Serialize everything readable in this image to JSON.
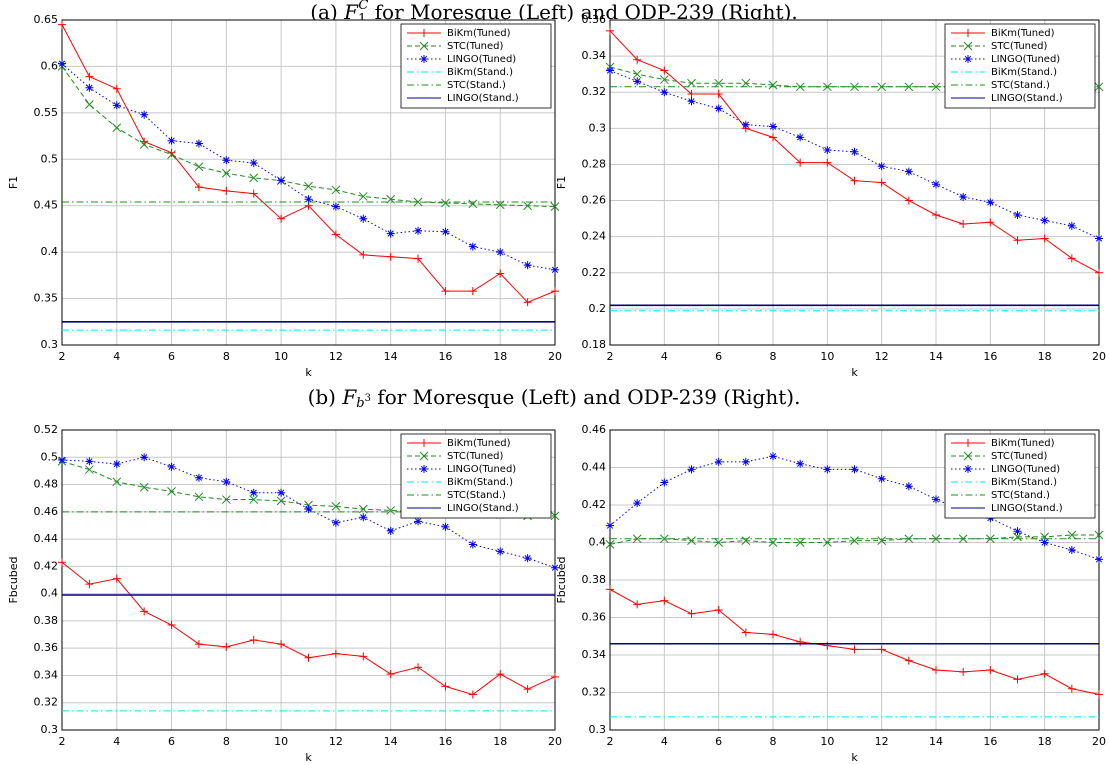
{
  "captions": [
    {
      "label": "(a)",
      "symbol": "F",
      "sub": "1",
      "sup": "C",
      "text": "for Moresque (Left) and ODP-239 (Right)."
    },
    {
      "label": "(b)",
      "symbol": "F",
      "sub": "b",
      "sup": "3",
      "text": "for Moresque (Left) and ODP-239 (Right)."
    }
  ],
  "chart_data": [
    {
      "type": "line",
      "xlabel": "k",
      "ylabel": "F1",
      "legend": "upper right",
      "grid": true,
      "x": [
        2,
        3,
        4,
        5,
        6,
        7,
        8,
        9,
        10,
        11,
        12,
        13,
        14,
        15,
        16,
        17,
        18,
        19,
        20
      ],
      "xlim": [
        2,
        20
      ],
      "xticks": [
        2,
        4,
        6,
        8,
        10,
        12,
        14,
        16,
        18,
        20
      ],
      "ylim": [
        0.3,
        0.65
      ],
      "yticks": [
        0.3,
        0.35,
        0.4,
        0.45,
        0.5,
        0.55,
        0.6,
        0.65
      ],
      "series": [
        {
          "name": "BiKm(Tuned)",
          "color": "#ff0000",
          "linestyle": "solid",
          "marker": "+",
          "values": [
            0.645,
            0.589,
            0.576,
            0.519,
            0.507,
            0.47,
            0.466,
            0.463,
            0.436,
            0.45,
            0.419,
            0.397,
            0.395,
            0.393,
            0.358,
            0.358,
            0.377,
            0.346,
            0.358
          ]
        },
        {
          "name": "STC(Tuned)",
          "color": "#228b22",
          "linestyle": "dashed",
          "marker": "x",
          "values": [
            0.6,
            0.559,
            0.534,
            0.516,
            0.505,
            0.492,
            0.485,
            0.48,
            0.477,
            0.471,
            0.467,
            0.46,
            0.457,
            0.454,
            0.453,
            0.452,
            0.451,
            0.45,
            0.449
          ]
        },
        {
          "name": "LINGO(Tuned)",
          "color": "#0000ff",
          "linestyle": "dotted",
          "marker": "*",
          "values": [
            0.603,
            0.577,
            0.558,
            0.548,
            0.52,
            0.517,
            0.499,
            0.496,
            0.477,
            0.457,
            0.449,
            0.436,
            0.42,
            0.423,
            0.422,
            0.406,
            0.4,
            0.386,
            0.381
          ]
        },
        {
          "name": "BiKm(Stand.)",
          "color": "#00e5ee",
          "linestyle": "dashdot",
          "values": [
            0.316,
            0.316,
            0.316,
            0.316,
            0.316,
            0.316,
            0.316,
            0.316,
            0.316,
            0.316,
            0.316,
            0.316,
            0.316,
            0.316,
            0.316,
            0.316,
            0.316,
            0.316,
            0.316
          ]
        },
        {
          "name": "STC(Stand.)",
          "color": "#228b22",
          "linestyle": "dashdot",
          "values": [
            0.454,
            0.454,
            0.454,
            0.454,
            0.454,
            0.454,
            0.454,
            0.454,
            0.454,
            0.454,
            0.454,
            0.454,
            0.454,
            0.454,
            0.454,
            0.454,
            0.454,
            0.454,
            0.454
          ]
        },
        {
          "name": "LINGO(Stand.)",
          "color": "#000080",
          "linestyle": "solid",
          "values": [
            0.325,
            0.325,
            0.325,
            0.325,
            0.325,
            0.325,
            0.325,
            0.325,
            0.325,
            0.325,
            0.325,
            0.325,
            0.325,
            0.325,
            0.325,
            0.325,
            0.325,
            0.325,
            0.325
          ]
        }
      ]
    },
    {
      "type": "line",
      "xlabel": "k",
      "ylabel": "F1",
      "legend": "upper right",
      "grid": true,
      "x": [
        2,
        3,
        4,
        5,
        6,
        7,
        8,
        9,
        10,
        11,
        12,
        13,
        14,
        15,
        16,
        17,
        18,
        19,
        20
      ],
      "xlim": [
        2,
        20
      ],
      "xticks": [
        2,
        4,
        6,
        8,
        10,
        12,
        14,
        16,
        18,
        20
      ],
      "ylim": [
        0.18,
        0.36
      ],
      "yticks": [
        0.18,
        0.2,
        0.22,
        0.24,
        0.26,
        0.28,
        0.3,
        0.32,
        0.34,
        0.36
      ],
      "series": [
        {
          "name": "BiKm(Tuned)",
          "color": "#ff0000",
          "linestyle": "solid",
          "marker": "+",
          "values": [
            0.354,
            0.338,
            0.332,
            0.319,
            0.319,
            0.3,
            0.295,
            0.281,
            0.281,
            0.271,
            0.27,
            0.26,
            0.252,
            0.247,
            0.248,
            0.238,
            0.239,
            0.228,
            0.22
          ]
        },
        {
          "name": "STC(Tuned)",
          "color": "#228b22",
          "linestyle": "dashed",
          "marker": "x",
          "values": [
            0.334,
            0.33,
            0.327,
            0.325,
            0.325,
            0.325,
            0.324,
            0.323,
            0.323,
            0.323,
            0.323,
            0.323,
            0.323,
            0.323,
            0.323,
            0.323,
            0.323,
            0.323,
            0.323
          ]
        },
        {
          "name": "LINGO(Tuned)",
          "color": "#0000ff",
          "linestyle": "dotted",
          "marker": "*",
          "values": [
            0.332,
            0.326,
            0.32,
            0.315,
            0.311,
            0.302,
            0.301,
            0.295,
            0.288,
            0.287,
            0.279,
            0.276,
            0.269,
            0.262,
            0.259,
            0.252,
            0.249,
            0.246,
            0.239
          ]
        },
        {
          "name": "BiKm(Stand.)",
          "color": "#00e5ee",
          "linestyle": "dashdot",
          "values": [
            0.199,
            0.199,
            0.199,
            0.199,
            0.199,
            0.199,
            0.199,
            0.199,
            0.199,
            0.199,
            0.199,
            0.199,
            0.199,
            0.199,
            0.199,
            0.199,
            0.199,
            0.199,
            0.199
          ]
        },
        {
          "name": "STC(Stand.)",
          "color": "#228b22",
          "linestyle": "dashdot",
          "values": [
            0.323,
            0.323,
            0.323,
            0.323,
            0.323,
            0.323,
            0.323,
            0.323,
            0.323,
            0.323,
            0.323,
            0.323,
            0.323,
            0.323,
            0.323,
            0.323,
            0.323,
            0.323,
            0.323
          ]
        },
        {
          "name": "LINGO(Stand.)",
          "color": "#000080",
          "linestyle": "solid",
          "values": [
            0.202,
            0.202,
            0.202,
            0.202,
            0.202,
            0.202,
            0.202,
            0.202,
            0.202,
            0.202,
            0.202,
            0.202,
            0.202,
            0.202,
            0.202,
            0.202,
            0.202,
            0.202,
            0.202
          ]
        }
      ]
    },
    {
      "type": "line",
      "xlabel": "k",
      "ylabel": "Fbcubed",
      "legend": "upper right",
      "grid": true,
      "x": [
        2,
        3,
        4,
        5,
        6,
        7,
        8,
        9,
        10,
        11,
        12,
        13,
        14,
        15,
        16,
        17,
        18,
        19,
        20
      ],
      "xlim": [
        2,
        20
      ],
      "xticks": [
        2,
        4,
        6,
        8,
        10,
        12,
        14,
        16,
        18,
        20
      ],
      "ylim": [
        0.3,
        0.52
      ],
      "yticks": [
        0.3,
        0.32,
        0.34,
        0.36,
        0.38,
        0.4,
        0.42,
        0.44,
        0.46,
        0.48,
        0.5,
        0.52
      ],
      "series": [
        {
          "name": "BiKm(Tuned)",
          "color": "#ff0000",
          "linestyle": "solid",
          "marker": "+",
          "values": [
            0.423,
            0.407,
            0.411,
            0.387,
            0.377,
            0.363,
            0.361,
            0.366,
            0.363,
            0.353,
            0.356,
            0.354,
            0.341,
            0.346,
            0.332,
            0.326,
            0.341,
            0.33,
            0.339
          ]
        },
        {
          "name": "STC(Tuned)",
          "color": "#228b22",
          "linestyle": "dashed",
          "marker": "x",
          "values": [
            0.497,
            0.491,
            0.482,
            0.478,
            0.475,
            0.471,
            0.469,
            0.469,
            0.468,
            0.465,
            0.464,
            0.462,
            0.461,
            0.46,
            0.46,
            0.459,
            0.458,
            0.457,
            0.457
          ]
        },
        {
          "name": "LINGO(Tuned)",
          "color": "#0000ff",
          "linestyle": "dotted",
          "marker": "*",
          "values": [
            0.498,
            0.497,
            0.495,
            0.5,
            0.493,
            0.485,
            0.482,
            0.474,
            0.474,
            0.462,
            0.452,
            0.456,
            0.446,
            0.453,
            0.449,
            0.436,
            0.431,
            0.426,
            0.419
          ]
        },
        {
          "name": "BiKm(Stand.)",
          "color": "#00e5ee",
          "linestyle": "dashdot",
          "values": [
            0.314,
            0.314,
            0.314,
            0.314,
            0.314,
            0.314,
            0.314,
            0.314,
            0.314,
            0.314,
            0.314,
            0.314,
            0.314,
            0.314,
            0.314,
            0.314,
            0.314,
            0.314,
            0.314
          ]
        },
        {
          "name": "STC(Stand.)",
          "color": "#228b22",
          "linestyle": "dashdot",
          "values": [
            0.46,
            0.46,
            0.46,
            0.46,
            0.46,
            0.46,
            0.46,
            0.46,
            0.46,
            0.46,
            0.46,
            0.46,
            0.46,
            0.46,
            0.46,
            0.46,
            0.46,
            0.46,
            0.46
          ]
        },
        {
          "name": "LINGO(Stand.)",
          "color": "#000080",
          "linestyle": "solid",
          "values": [
            0.399,
            0.399,
            0.399,
            0.399,
            0.399,
            0.399,
            0.399,
            0.399,
            0.399,
            0.399,
            0.399,
            0.399,
            0.399,
            0.399,
            0.399,
            0.399,
            0.399,
            0.399,
            0.399
          ]
        }
      ]
    },
    {
      "type": "line",
      "xlabel": "k",
      "ylabel": "Fbcubed",
      "legend": "upper right",
      "grid": true,
      "x": [
        2,
        3,
        4,
        5,
        6,
        7,
        8,
        9,
        10,
        11,
        12,
        13,
        14,
        15,
        16,
        17,
        18,
        19,
        20
      ],
      "xlim": [
        2,
        20
      ],
      "xticks": [
        2,
        4,
        6,
        8,
        10,
        12,
        14,
        16,
        18,
        20
      ],
      "ylim": [
        0.3,
        0.46
      ],
      "yticks": [
        0.3,
        0.32,
        0.34,
        0.36,
        0.38,
        0.4,
        0.42,
        0.44,
        0.46
      ],
      "series": [
        {
          "name": "BiKm(Tuned)",
          "color": "#ff0000",
          "linestyle": "solid",
          "marker": "+",
          "values": [
            0.375,
            0.367,
            0.369,
            0.362,
            0.364,
            0.352,
            0.351,
            0.347,
            0.345,
            0.343,
            0.343,
            0.337,
            0.332,
            0.331,
            0.332,
            0.327,
            0.33,
            0.322,
            0.319
          ]
        },
        {
          "name": "STC(Tuned)",
          "color": "#228b22",
          "linestyle": "dashed",
          "marker": "x",
          "values": [
            0.399,
            0.402,
            0.402,
            0.401,
            0.4,
            0.401,
            0.4,
            0.4,
            0.4,
            0.401,
            0.401,
            0.402,
            0.402,
            0.402,
            0.402,
            0.403,
            0.403,
            0.404,
            0.404
          ]
        },
        {
          "name": "LINGO(Tuned)",
          "color": "#0000ff",
          "linestyle": "dotted",
          "marker": "*",
          "values": [
            0.409,
            0.421,
            0.432,
            0.439,
            0.443,
            0.443,
            0.446,
            0.442,
            0.439,
            0.439,
            0.434,
            0.43,
            0.423,
            0.417,
            0.413,
            0.406,
            0.4,
            0.396,
            0.391
          ]
        },
        {
          "name": "BiKm(Stand.)",
          "color": "#00e5ee",
          "linestyle": "dashdot",
          "values": [
            0.307,
            0.307,
            0.307,
            0.307,
            0.307,
            0.307,
            0.307,
            0.307,
            0.307,
            0.307,
            0.307,
            0.307,
            0.307,
            0.307,
            0.307,
            0.307,
            0.307,
            0.307,
            0.307
          ]
        },
        {
          "name": "STC(Stand.)",
          "color": "#228b22",
          "linestyle": "dashdot",
          "values": [
            0.402,
            0.402,
            0.402,
            0.402,
            0.402,
            0.402,
            0.402,
            0.402,
            0.402,
            0.402,
            0.402,
            0.402,
            0.402,
            0.402,
            0.402,
            0.402,
            0.402,
            0.402,
            0.402
          ]
        },
        {
          "name": "LINGO(Stand.)",
          "color": "#000080",
          "linestyle": "solid",
          "values": [
            0.346,
            0.346,
            0.346,
            0.346,
            0.346,
            0.346,
            0.346,
            0.346,
            0.346,
            0.346,
            0.346,
            0.346,
            0.346,
            0.346,
            0.346,
            0.346,
            0.346,
            0.346,
            0.346
          ]
        }
      ]
    }
  ]
}
